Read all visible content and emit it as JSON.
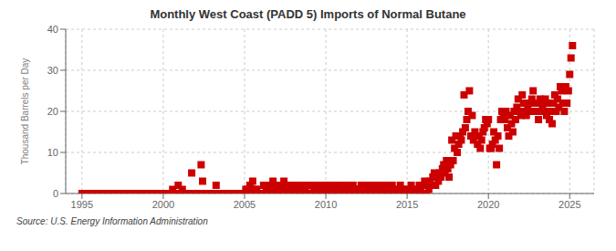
{
  "chart_data": {
    "type": "scatter",
    "title": "Monthly West Coast (PADD 5) Imports of Normal Butane",
    "ylabel": "Thousand Barrels per Day",
    "annotation": "Source: U.S. Energy Information Administration",
    "color": "#cc0000",
    "marker": "square",
    "grid": true,
    "xlim": [
      1994.0,
      2026.5
    ],
    "xticks": [
      1995,
      2000,
      2005,
      2010,
      2015,
      2020,
      2025
    ],
    "ylim": [
      0,
      40
    ],
    "yticks": [
      0,
      10,
      20,
      30,
      40
    ],
    "x": [
      1995.0,
      1995.08,
      1995.17,
      1995.25,
      1995.33,
      1995.42,
      1995.5,
      1995.58,
      1995.67,
      1995.75,
      1995.83,
      1995.92,
      1996.0,
      1996.08,
      1996.17,
      1996.25,
      1996.33,
      1996.42,
      1996.5,
      1996.58,
      1996.67,
      1996.75,
      1996.83,
      1996.92,
      1997.0,
      1997.08,
      1997.17,
      1997.25,
      1997.33,
      1997.42,
      1997.5,
      1997.58,
      1997.67,
      1997.75,
      1997.83,
      1997.92,
      1998.0,
      1998.08,
      1998.17,
      1998.25,
      1998.33,
      1998.42,
      1998.5,
      1998.58,
      1998.67,
      1998.75,
      1998.83,
      1998.92,
      1999.0,
      1999.08,
      1999.17,
      1999.25,
      1999.33,
      1999.42,
      1999.5,
      1999.58,
      1999.67,
      1999.75,
      1999.83,
      1999.92,
      2000.0,
      2000.08,
      2000.17,
      2000.25,
      2000.33,
      2000.42,
      2000.5,
      2000.58,
      2000.67,
      2000.75,
      2000.83,
      2000.92,
      2001.0,
      2001.08,
      2001.17,
      2001.25,
      2001.33,
      2001.42,
      2001.5,
      2001.58,
      2001.67,
      2001.75,
      2001.83,
      2001.92,
      2002.0,
      2002.08,
      2002.17,
      2002.25,
      2002.33,
      2002.42,
      2002.5,
      2002.58,
      2002.67,
      2002.75,
      2002.83,
      2002.92,
      2003.0,
      2003.08,
      2003.17,
      2003.25,
      2003.33,
      2003.42,
      2003.5,
      2003.58,
      2003.67,
      2003.75,
      2003.83,
      2003.92,
      2004.0,
      2004.08,
      2004.17,
      2004.25,
      2004.33,
      2004.42,
      2004.5,
      2004.58,
      2004.67,
      2004.75,
      2004.83,
      2004.92,
      2005.0,
      2005.08,
      2005.17,
      2005.25,
      2005.33,
      2005.42,
      2005.5,
      2005.58,
      2005.67,
      2005.75,
      2005.83,
      2005.92,
      2006.0,
      2006.08,
      2006.17,
      2006.25,
      2006.33,
      2006.42,
      2006.5,
      2006.58,
      2006.67,
      2006.75,
      2006.83,
      2006.92,
      2007.0,
      2007.08,
      2007.17,
      2007.25,
      2007.33,
      2007.42,
      2007.5,
      2007.58,
      2007.67,
      2007.75,
      2007.83,
      2007.92,
      2008.0,
      2008.08,
      2008.17,
      2008.25,
      2008.33,
      2008.42,
      2008.5,
      2008.58,
      2008.67,
      2008.75,
      2008.83,
      2008.92,
      2009.0,
      2009.08,
      2009.17,
      2009.25,
      2009.33,
      2009.42,
      2009.5,
      2009.58,
      2009.67,
      2009.75,
      2009.83,
      2009.92,
      2010.0,
      2010.08,
      2010.17,
      2010.25,
      2010.33,
      2010.42,
      2010.5,
      2010.58,
      2010.67,
      2010.75,
      2010.83,
      2010.92,
      2011.0,
      2011.08,
      2011.17,
      2011.25,
      2011.33,
      2011.42,
      2011.5,
      2011.58,
      2011.67,
      2011.75,
      2011.83,
      2011.92,
      2012.0,
      2012.08,
      2012.17,
      2012.25,
      2012.33,
      2012.42,
      2012.5,
      2012.58,
      2012.67,
      2012.75,
      2012.83,
      2012.92,
      2013.0,
      2013.08,
      2013.17,
      2013.25,
      2013.33,
      2013.42,
      2013.5,
      2013.58,
      2013.67,
      2013.75,
      2013.83,
      2013.92,
      2014.0,
      2014.08,
      2014.17,
      2014.25,
      2014.33,
      2014.42,
      2014.5,
      2014.58,
      2014.67,
      2014.75,
      2014.83,
      2014.92,
      2015.0,
      2015.08,
      2015.17,
      2015.25,
      2015.33,
      2015.42,
      2015.5,
      2015.58,
      2015.67,
      2015.75,
      2015.83,
      2015.92,
      2016.0,
      2016.08,
      2016.17,
      2016.25,
      2016.33,
      2016.42,
      2016.5,
      2016.58,
      2016.67,
      2016.75,
      2016.83,
      2016.92,
      2017.0,
      2017.08,
      2017.17,
      2017.25,
      2017.33,
      2017.42,
      2017.5,
      2017.58,
      2017.67,
      2017.75,
      2017.83,
      2017.92,
      2018.0,
      2018.08,
      2018.17,
      2018.25,
      2018.33,
      2018.42,
      2018.5,
      2018.58,
      2018.67,
      2018.75,
      2018.83,
      2018.92,
      2019.0,
      2019.08,
      2019.17,
      2019.25,
      2019.33,
      2019.42,
      2019.5,
      2019.58,
      2019.67,
      2019.75,
      2019.83,
      2019.92,
      2020.0,
      2020.08,
      2020.17,
      2020.25,
      2020.33,
      2020.42,
      2020.5,
      2020.58,
      2020.67,
      2020.75,
      2020.83,
      2020.92,
      2021.0,
      2021.08,
      2021.17,
      2021.25,
      2021.33,
      2021.42,
      2021.5,
      2021.58,
      2021.67,
      2021.75,
      2021.83,
      2021.92,
      2022.0,
      2022.08,
      2022.17,
      2022.25,
      2022.33,
      2022.42,
      2022.5,
      2022.58,
      2022.67,
      2022.75,
      2022.83,
      2022.92,
      2023.0,
      2023.08,
      2023.17,
      2023.25,
      2023.33,
      2023.42,
      2023.5,
      2023.58,
      2023.67,
      2023.75,
      2023.83,
      2023.92,
      2024.0,
      2024.08,
      2024.17,
      2024.25,
      2024.33,
      2024.42,
      2024.5,
      2024.58,
      2024.67,
      2024.75,
      2024.83,
      2024.92,
      2025.0,
      2025.08,
      2025.17
    ],
    "values": [
      0,
      0,
      0,
      0,
      0,
      0,
      0,
      0,
      0,
      0,
      0,
      0,
      0,
      0,
      0,
      0,
      0,
      0,
      0,
      0,
      0,
      0,
      0,
      0,
      0,
      0,
      0,
      0,
      0,
      0,
      0,
      0,
      0,
      0,
      0,
      0,
      0,
      0,
      0,
      0,
      0,
      0,
      0,
      0,
      0,
      0,
      0,
      0,
      0,
      0,
      0,
      0,
      0,
      0,
      0,
      0,
      0,
      0,
      0,
      0,
      0,
      0,
      0,
      0,
      0,
      0,
      0,
      1,
      0,
      0,
      0,
      2,
      0,
      0,
      1,
      0,
      0,
      0,
      0,
      0,
      0,
      5,
      0,
      0,
      0,
      0,
      0,
      0,
      7,
      3,
      0,
      0,
      0,
      0,
      0,
      0,
      0,
      0,
      0,
      2,
      0,
      0,
      0,
      0,
      0,
      0,
      0,
      0,
      0,
      0,
      0,
      0,
      0,
      0,
      0,
      0,
      0,
      0,
      0,
      0,
      0,
      1,
      1,
      0,
      2,
      1,
      3,
      0,
      1,
      1,
      0,
      0,
      0,
      0,
      2,
      2,
      1,
      0,
      1,
      2,
      1,
      3,
      0,
      1,
      2,
      0,
      1,
      2,
      1,
      3,
      2,
      1,
      0,
      2,
      1,
      0,
      1,
      2,
      0,
      1,
      2,
      1,
      0,
      1,
      2,
      1,
      0,
      2,
      0,
      0,
      0,
      1,
      2,
      1,
      0,
      1,
      0,
      2,
      1,
      0,
      0,
      1,
      2,
      1,
      0,
      2,
      1,
      0,
      2,
      1,
      2,
      0,
      1,
      0,
      1,
      2,
      0,
      1,
      0,
      0,
      2,
      1,
      0,
      1,
      0,
      1,
      2,
      0,
      1,
      0,
      1,
      2,
      1,
      0,
      2,
      1,
      1,
      0,
      2,
      1,
      0,
      1,
      2,
      1,
      0,
      2,
      1,
      0,
      1,
      2,
      1,
      0,
      0,
      1,
      0,
      2,
      1,
      0,
      1,
      0,
      0,
      1,
      0,
      2,
      1,
      0,
      0,
      1,
      0,
      2,
      1,
      0,
      2,
      3,
      0,
      2,
      1,
      3,
      2,
      4,
      5,
      2,
      4,
      3,
      5,
      4,
      6,
      7,
      5,
      8,
      6,
      4,
      7,
      13,
      8,
      11,
      14,
      10,
      12,
      14,
      13,
      15,
      24,
      16,
      18,
      20,
      25,
      14,
      19,
      13,
      15,
      14,
      12,
      14,
      11,
      13,
      15,
      16,
      18,
      17,
      18,
      11,
      11,
      12,
      15,
      13,
      7,
      14,
      11,
      18,
      20,
      19,
      18,
      20,
      16,
      14,
      19,
      17,
      15,
      20,
      18,
      21,
      23,
      20,
      19,
      24,
      22,
      20,
      19,
      21,
      20,
      22,
      23,
      25,
      20,
      22,
      20,
      18,
      23,
      22,
      21,
      20,
      23,
      19,
      22,
      18,
      20,
      17,
      22,
      24,
      20,
      23,
      21,
      26,
      25,
      22,
      20,
      26,
      22,
      25,
      29,
      33,
      36
    ]
  }
}
